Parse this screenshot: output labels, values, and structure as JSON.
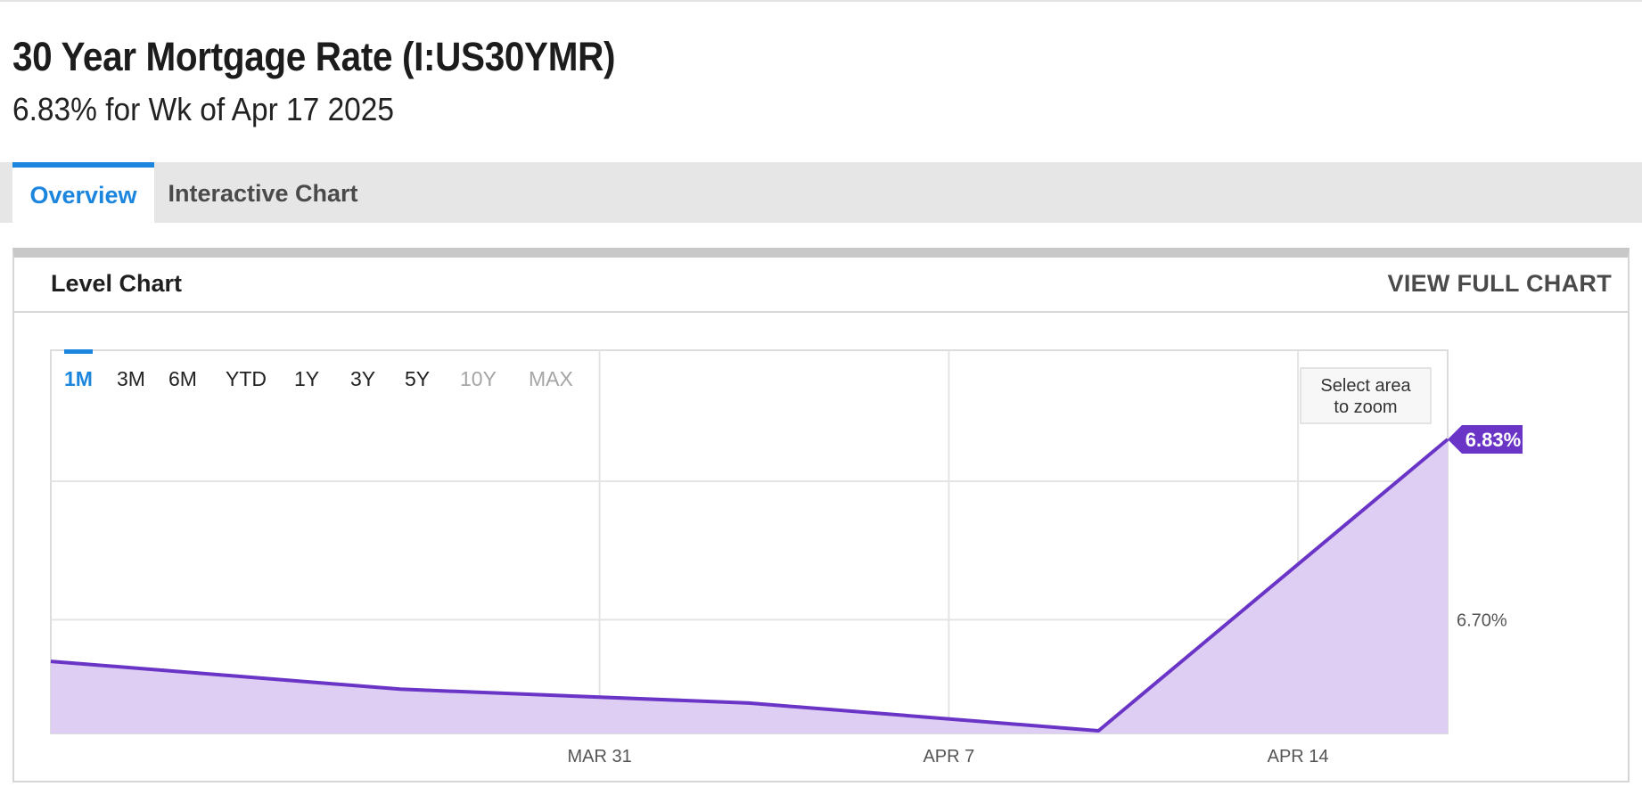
{
  "header": {
    "title": "30 Year Mortgage Rate (I:US30YMR)",
    "subtitle": "6.83% for Wk of Apr 17 2025"
  },
  "tabs": [
    {
      "label": "Overview",
      "active": true
    },
    {
      "label": "Interactive Chart",
      "active": false
    }
  ],
  "panel": {
    "title": "Level Chart",
    "view_full_label": "VIEW FULL CHART"
  },
  "range_buttons": [
    {
      "label": "1M",
      "state": "active"
    },
    {
      "label": "3M",
      "state": "enabled"
    },
    {
      "label": "6M",
      "state": "enabled"
    },
    {
      "label": "YTD",
      "state": "enabled"
    },
    {
      "label": "1Y",
      "state": "enabled"
    },
    {
      "label": "3Y",
      "state": "enabled"
    },
    {
      "label": "5Y",
      "state": "enabled"
    },
    {
      "label": "10Y",
      "state": "disabled"
    },
    {
      "label": "MAX",
      "state": "disabled"
    }
  ],
  "zoom_hint": [
    "Select area",
    "to zoom"
  ],
  "colors": {
    "accent": "#1c86de",
    "series_line": "#6a35c6",
    "series_fill": "#dccbf2",
    "badge": "#6a35c6"
  },
  "chart_data": {
    "type": "area",
    "x": [
      "2025-03-20",
      "2025-03-27",
      "2025-04-03",
      "2025-04-10",
      "2025-04-17"
    ],
    "values": [
      6.67,
      6.65,
      6.64,
      6.62,
      6.83
    ],
    "xticks": [
      "2025-03-31",
      "2025-04-07",
      "2025-04-14"
    ],
    "xtick_labels": [
      "MAR 31",
      "APR 7",
      "APR 14"
    ],
    "xlim": [
      "2025-03-20",
      "2025-04-17"
    ],
    "yticks": [
      6.7
    ],
    "ytick_labels": [
      "6.70%"
    ],
    "ylim": [
      6.62,
      6.83
    ],
    "last_value_label": "6.83%",
    "grid": true,
    "title": "",
    "xlabel": "",
    "ylabel": ""
  }
}
